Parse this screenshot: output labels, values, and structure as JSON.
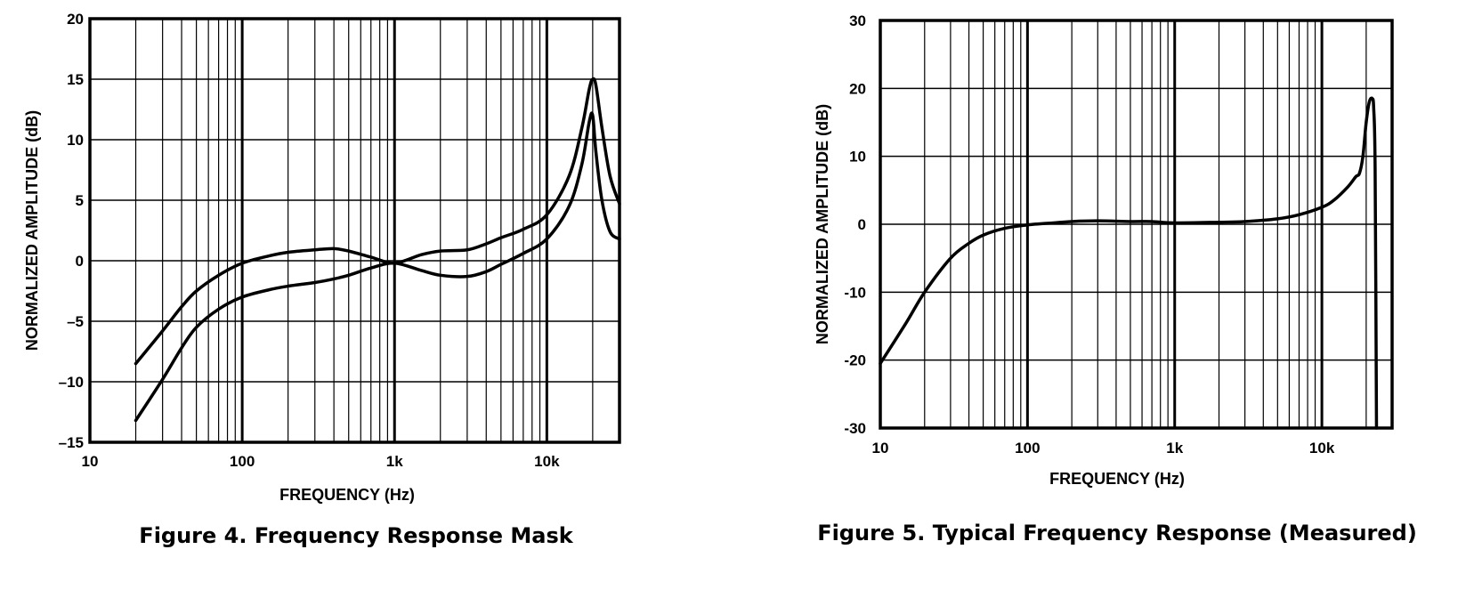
{
  "chart_data": [
    {
      "type": "line",
      "caption": "Figure 4. Frequency Response Mask",
      "xlabel": "FREQUENCY (Hz)",
      "ylabel": "NORMALIZED AMPLITUDE (dB)",
      "x_scale": "log",
      "xlim": [
        10,
        30000
      ],
      "ylim": [
        -15,
        20
      ],
      "x_ticks": [
        10,
        100,
        1000,
        10000
      ],
      "x_tick_labels": [
        "10",
        "100",
        "1k",
        "10k"
      ],
      "y_ticks": [
        20,
        15,
        10,
        5,
        0,
        -5,
        -10,
        -15
      ],
      "y_tick_labels": [
        "20",
        "15",
        "10",
        "5",
        "0",
        "–5",
        "–10",
        "–15"
      ],
      "grid": true,
      "series": [
        {
          "x": [
            20,
            30,
            40,
            50,
            70,
            100,
            150,
            200,
            300,
            400,
            500,
            700,
            1000,
            1500,
            2000,
            3000,
            4000,
            5000,
            7000,
            10000,
            14000,
            17000,
            19000,
            20000,
            21000,
            23000,
            26000,
            30000
          ],
          "y": [
            -8.5,
            -5.8,
            -3.8,
            -2.5,
            -1.2,
            -0.2,
            0.4,
            0.7,
            0.9,
            1.0,
            0.8,
            0.3,
            -0.2,
            0.5,
            0.8,
            0.9,
            1.4,
            1.9,
            2.6,
            3.8,
            7.0,
            11.0,
            14.2,
            15.0,
            14.5,
            11.0,
            7.0,
            4.7
          ]
        },
        {
          "x": [
            20,
            30,
            40,
            50,
            70,
            100,
            150,
            200,
            300,
            400,
            500,
            700,
            1000,
            1500,
            2000,
            3000,
            4000,
            5000,
            7000,
            10000,
            14000,
            17000,
            19000,
            20000,
            21000,
            23000,
            26000,
            30000
          ],
          "y": [
            -13.2,
            -9.8,
            -7.2,
            -5.5,
            -4.0,
            -3.0,
            -2.4,
            -2.1,
            -1.8,
            -1.5,
            -1.2,
            -0.6,
            -0.2,
            -0.8,
            -1.2,
            -1.3,
            -0.9,
            -0.3,
            0.6,
            1.8,
            4.5,
            8.0,
            11.5,
            12.0,
            9.0,
            5.0,
            2.4,
            1.8
          ]
        }
      ]
    },
    {
      "type": "line",
      "caption": "Figure 5. Typical Frequency Response (Measured)",
      "xlabel": "FREQUENCY (Hz)",
      "ylabel": "NORMALIZED AMPLITUDE (dB)",
      "x_scale": "log",
      "xlim": [
        10,
        30000
      ],
      "ylim": [
        -30,
        30
      ],
      "x_ticks": [
        10,
        100,
        1000,
        10000
      ],
      "x_tick_labels": [
        "10",
        "100",
        "1k",
        "10k"
      ],
      "y_ticks": [
        30,
        20,
        10,
        0,
        -10,
        -20,
        -30
      ],
      "y_tick_labels": [
        "30",
        "20",
        "10",
        "0",
        "-10",
        "-20",
        "-30"
      ],
      "grid": true,
      "series": [
        {
          "x": [
            10,
            15,
            20,
            30,
            40,
            50,
            70,
            100,
            150,
            200,
            300,
            500,
            700,
            1000,
            2000,
            3000,
            5000,
            7000,
            10000,
            12000,
            15000,
            17000,
            18000,
            19000,
            20000,
            21000,
            22000,
            22500,
            23000,
            23500
          ],
          "y": [
            -20.5,
            -14.5,
            -10.0,
            -5.0,
            -2.8,
            -1.6,
            -0.6,
            -0.1,
            0.2,
            0.4,
            0.5,
            0.4,
            0.4,
            0.2,
            0.3,
            0.4,
            0.8,
            1.4,
            2.5,
            3.5,
            5.5,
            7.0,
            7.5,
            10.0,
            15.0,
            18.0,
            18.5,
            17.0,
            8.0,
            -30.0
          ]
        }
      ]
    }
  ]
}
